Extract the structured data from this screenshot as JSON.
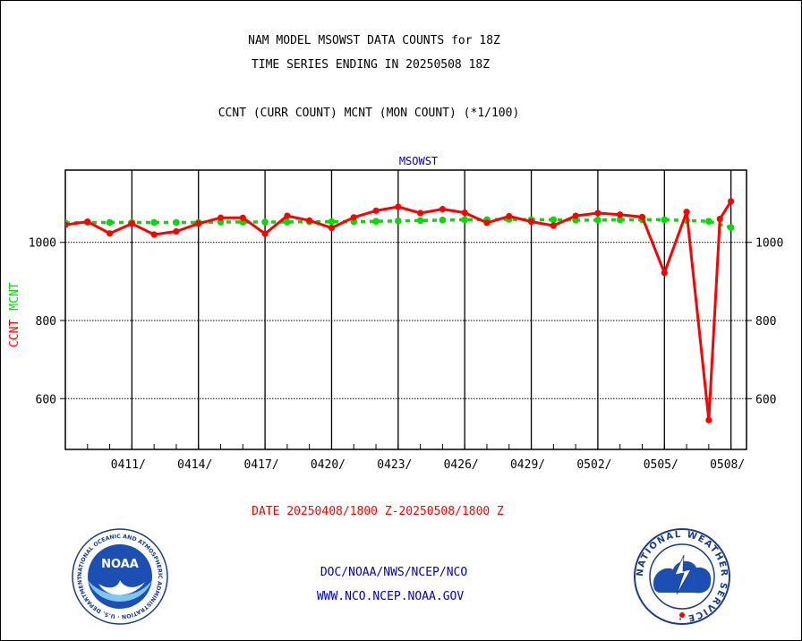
{
  "header": {
    "title_line1": "NAM MODEL MSOWST DATA COUNTS for 18Z",
    "title_line2": "TIME SERIES ENDING IN 20250508 18Z",
    "subtitle": "CCNT (CURR COUNT) MCNT (MON COUNT) (*1/100)"
  },
  "footer": {
    "date_range": "DATE 20250408/1800 Z-20250508/1800 Z",
    "link_agency": "DOC/NOAA/NWS/NCEP/NCO",
    "link_site": "WWW.NCO.NCEP.NOAA.GOV"
  },
  "logos": {
    "noaa_text": "NOAA",
    "noaa_ring": "NATIONAL OCEANIC AND ATMOSPHERIC ADMINISTRATION · U.S. DEPARTMENT OF COMMERCE ·",
    "nws_ring": "NATIONAL WEATHER SERVICE ·"
  },
  "colors": {
    "ccnt": "#ff0000",
    "mcnt": "#00dd00",
    "label_blue": "#0000c8",
    "date_red": "#ff0000"
  },
  "chart_data": {
    "type": "line",
    "title": "MSOWST",
    "ylabel_series": [
      "CCNT",
      "MCNT"
    ],
    "ylim": [
      470,
      1185
    ],
    "yticks": [
      600,
      800,
      1000
    ],
    "x_tick_labels": [
      "0411/",
      "0414/",
      "0417/",
      "0420/",
      "0423/",
      "0426/",
      "0429/",
      "0502/",
      "0505/",
      "0508/"
    ],
    "x_tick_days": [
      3,
      6,
      9,
      12,
      15,
      18,
      21,
      24,
      27,
      30
    ],
    "x_range_days": [
      0,
      30.7
    ],
    "grid": true,
    "series": [
      {
        "name": "CCNT",
        "x": [
          0,
          1,
          2,
          3,
          4,
          5,
          6,
          7,
          8,
          9,
          10,
          11,
          12,
          13,
          14,
          15,
          16,
          17,
          18,
          19,
          20,
          21,
          22,
          23,
          24,
          25,
          26,
          27,
          28,
          29,
          29.5,
          30
        ],
        "values": [
          1045,
          1053,
          1023,
          1048,
          1020,
          1028,
          1048,
          1063,
          1063,
          1022,
          1068,
          1056,
          1037,
          1064,
          1081,
          1091,
          1075,
          1085,
          1076,
          1050,
          1067,
          1053,
          1043,
          1068,
          1075,
          1071,
          1065,
          922,
          1078,
          545,
          1060,
          1105
        ]
      },
      {
        "name": "MCNT",
        "x": [
          0,
          1,
          2,
          3,
          4,
          5,
          6,
          7,
          8,
          9,
          10,
          11,
          12,
          13,
          14,
          15,
          16,
          17,
          18,
          19,
          20,
          21,
          22,
          23,
          24,
          25,
          26,
          27,
          28,
          29,
          30
        ],
        "values": [
          1050,
          1051,
          1051,
          1051,
          1051,
          1051,
          1051,
          1052,
          1052,
          1052,
          1052,
          1053,
          1053,
          1053,
          1054,
          1055,
          1056,
          1057,
          1058,
          1058,
          1059,
          1058,
          1058,
          1057,
          1057,
          1058,
          1058,
          1058,
          1056,
          1054,
          1038
        ]
      }
    ]
  }
}
